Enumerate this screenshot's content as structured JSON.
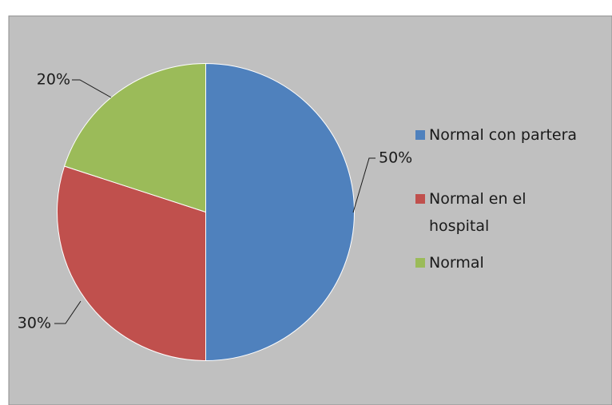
{
  "chart_data": {
    "type": "pie",
    "title": "",
    "categories": [
      "Normal con partera",
      "Normal en el hospital",
      "Normal"
    ],
    "values": [
      50,
      30,
      20
    ],
    "labels": [
      "50%",
      "30%",
      "20%"
    ],
    "colors": [
      "#4f81bd",
      "#c0504d",
      "#9bbb59"
    ],
    "legend_lines": [
      [
        "Normal con partera"
      ],
      [
        "Normal en el",
        "hospital"
      ],
      [
        "Normal"
      ]
    ],
    "legend_position": "right",
    "start_angle_deg": 0,
    "direction": "clockwise"
  },
  "background_color": "#c0c0c0"
}
